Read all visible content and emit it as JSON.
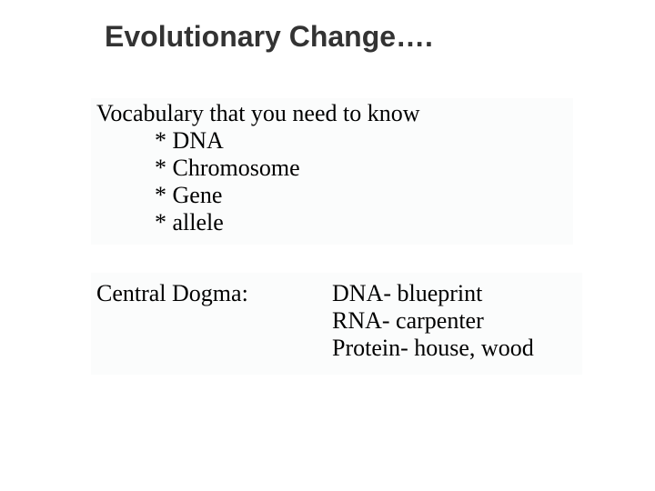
{
  "background_color": "#ffffff",
  "content_bg_color": "#fbfcfc",
  "text_color": "#000000",
  "title_color": "#333333",
  "title_font": "Arial",
  "body_font": "Times New Roman",
  "title_fontsize_pt": 24,
  "body_fontsize_pt": 20,
  "title": "Evolutionary Change….",
  "vocab_intro": "Vocabulary that you need to know",
  "vocab_items": {
    "0": "* DNA",
    "1": "* Chromosome",
    "2": "* Gene",
    "3": "* allele"
  },
  "central_dogma_label": "Central Dogma:",
  "analogy": {
    "line0": "DNA- blueprint",
    "line1": "RNA- carpenter",
    "line2": "Protein- house, wood"
  }
}
